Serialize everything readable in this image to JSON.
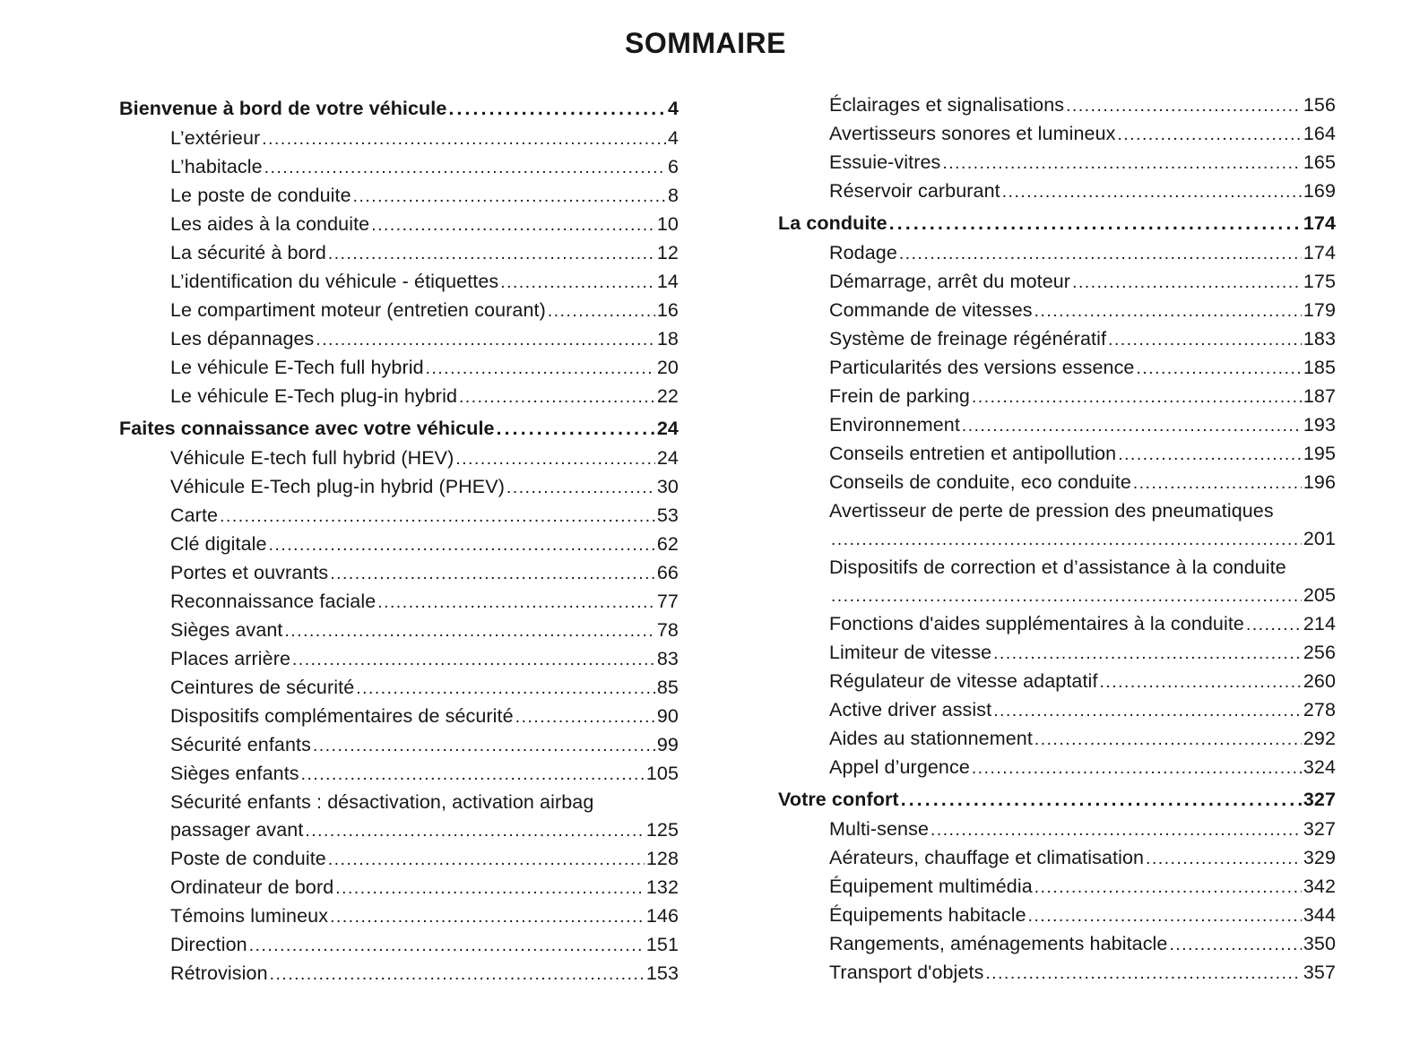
{
  "page": {
    "title": "SOMMAIRE"
  },
  "columns": [
    {
      "rows": [
        {
          "type": "section",
          "label": "Bienvenue à bord de votre véhicule",
          "page": "4"
        },
        {
          "type": "item",
          "label": "L’extérieur",
          "page": "4"
        },
        {
          "type": "item",
          "label": "L’habitacle",
          "page": "6"
        },
        {
          "type": "item",
          "label": "Le poste de conduite",
          "page": "8"
        },
        {
          "type": "item",
          "label": "Les aides à la conduite",
          "page": "10"
        },
        {
          "type": "item",
          "label": "La sécurité à bord",
          "page": "12"
        },
        {
          "type": "item",
          "label": "L’identification du véhicule - étiquettes",
          "page": "14"
        },
        {
          "type": "item",
          "label": "Le compartiment moteur (entretien courant)",
          "page": "16"
        },
        {
          "type": "item",
          "label": "Les dépannages",
          "page": "18"
        },
        {
          "type": "item",
          "label": "Le véhicule E-Tech full hybrid",
          "page": "20"
        },
        {
          "type": "item",
          "label": "Le véhicule E-Tech plug-in hybrid",
          "page": "22"
        },
        {
          "type": "section",
          "label": "Faites connaissance avec votre véhicule",
          "page": "24"
        },
        {
          "type": "item",
          "label": "Véhicule E-tech full hybrid (HEV)",
          "page": "24"
        },
        {
          "type": "item",
          "label": "Véhicule E-Tech plug-in hybrid (PHEV)",
          "page": "30"
        },
        {
          "type": "item",
          "label": "Carte",
          "page": "53"
        },
        {
          "type": "item",
          "label": "Clé digitale",
          "page": "62"
        },
        {
          "type": "item",
          "label": "Portes et ouvrants",
          "page": "66"
        },
        {
          "type": "item",
          "label": "Reconnaissance faciale",
          "page": "77"
        },
        {
          "type": "item",
          "label": "Sièges avant",
          "page": "78"
        },
        {
          "type": "item",
          "label": "Places arrière",
          "page": "83"
        },
        {
          "type": "item",
          "label": "Ceintures de sécurité",
          "page": "85"
        },
        {
          "type": "item",
          "label": "Dispositifs complémentaires de sécurité",
          "page": "90"
        },
        {
          "type": "item",
          "label": "Sécurité enfants",
          "page": "99"
        },
        {
          "type": "item",
          "label": "Sièges enfants",
          "page": "105"
        },
        {
          "type": "item",
          "label": "Sécurité enfants : désactivation, activation airbag",
          "label2": "passager avant",
          "page": "125"
        },
        {
          "type": "item",
          "label": "Poste de conduite",
          "page": "128"
        },
        {
          "type": "item",
          "label": "Ordinateur de bord",
          "page": "132"
        },
        {
          "type": "item",
          "label": "Témoins lumineux",
          "page": "146"
        },
        {
          "type": "item",
          "label": "Direction",
          "page": "151"
        },
        {
          "type": "item",
          "label": "Rétrovision",
          "page": "153"
        }
      ]
    },
    {
      "rows": [
        {
          "type": "item",
          "label": "Éclairages et signalisations",
          "page": "156"
        },
        {
          "type": "item",
          "label": "Avertisseurs sonores et lumineux",
          "page": "164"
        },
        {
          "type": "item",
          "label": "Essuie-vitres",
          "page": "165"
        },
        {
          "type": "item",
          "label": "Réservoir carburant",
          "page": "169"
        },
        {
          "type": "section",
          "label": "La conduite",
          "page": "174"
        },
        {
          "type": "item",
          "label": "Rodage",
          "page": "174"
        },
        {
          "type": "item",
          "label": "Démarrage, arrêt du moteur",
          "page": "175"
        },
        {
          "type": "item",
          "label": "Commande de vitesses",
          "page": "179"
        },
        {
          "type": "item",
          "label": "Système de freinage régénératif",
          "page": "183"
        },
        {
          "type": "item",
          "label": "Particularités des versions essence",
          "page": "185"
        },
        {
          "type": "item",
          "label": "Frein de parking",
          "page": "187"
        },
        {
          "type": "item",
          "label": "Environnement",
          "page": "193"
        },
        {
          "type": "item",
          "label": "Conseils entretien et antipollution",
          "page": "195"
        },
        {
          "type": "item",
          "label": "Conseils de conduite, eco conduite",
          "page": "196"
        },
        {
          "type": "item",
          "label": "Avertisseur de perte de pression des pneumatiques",
          "label2": "",
          "page": "201"
        },
        {
          "type": "item",
          "label": "Dispositifs de correction et d’assistance à la conduite",
          "label2": "",
          "page": "205"
        },
        {
          "type": "item",
          "label": "Fonctions d'aides supplémentaires à la conduite",
          "page": "214"
        },
        {
          "type": "item",
          "label": "Limiteur de vitesse",
          "page": "256"
        },
        {
          "type": "item",
          "label": "Régulateur de vitesse adaptatif",
          "page": "260"
        },
        {
          "type": "item",
          "label": "Active driver assist",
          "page": "278"
        },
        {
          "type": "item",
          "label": "Aides au stationnement",
          "page": "292"
        },
        {
          "type": "item",
          "label": "Appel d’urgence",
          "page": "324"
        },
        {
          "type": "section",
          "label": "Votre confort",
          "page": "327"
        },
        {
          "type": "item",
          "label": "Multi-sense",
          "page": "327"
        },
        {
          "type": "item",
          "label": "Aérateurs, chauffage et climatisation",
          "page": "329"
        },
        {
          "type": "item",
          "label": "Équipement multimédia",
          "page": "342"
        },
        {
          "type": "item",
          "label": "Équipements habitacle",
          "page": "344"
        },
        {
          "type": "item",
          "label": "Rangements, aménagements habitacle",
          "page": "350"
        },
        {
          "type": "item",
          "label": "Transport d'objets",
          "page": "357"
        }
      ]
    }
  ]
}
